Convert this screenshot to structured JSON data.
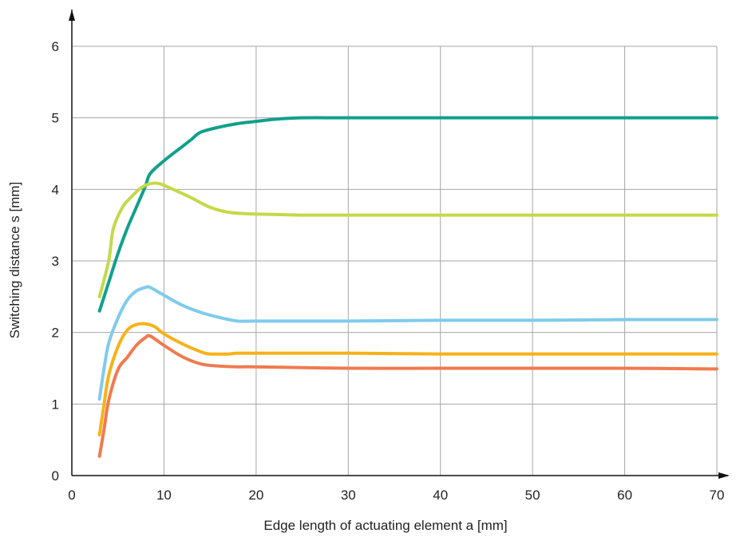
{
  "chart_data": {
    "type": "line",
    "title": "",
    "xlabel": "Edge length of actuating element a [mm]",
    "ylabel": "Switching distance s [mm]",
    "xlim": [
      0,
      70
    ],
    "ylim": [
      0,
      6
    ],
    "xticks": [
      0,
      10,
      20,
      30,
      40,
      50,
      60,
      70
    ],
    "yticks": [
      0,
      1,
      2,
      3,
      4,
      5,
      6
    ],
    "grid": true,
    "legend": "none",
    "series": [
      {
        "color": "#11a08c",
        "points": [
          [
            3,
            2.3
          ],
          [
            4,
            2.7
          ],
          [
            5,
            3.1
          ],
          [
            6,
            3.45
          ],
          [
            7,
            3.75
          ],
          [
            8,
            4.05
          ],
          [
            8.5,
            4.22
          ],
          [
            10,
            4.4
          ],
          [
            12,
            4.6
          ],
          [
            13,
            4.7
          ],
          [
            14,
            4.8
          ],
          [
            16,
            4.87
          ],
          [
            18,
            4.92
          ],
          [
            20,
            4.95
          ],
          [
            22,
            4.98
          ],
          [
            25,
            5.0
          ],
          [
            30,
            5.0
          ],
          [
            40,
            5.0
          ],
          [
            50,
            5.0
          ],
          [
            60,
            5.0
          ],
          [
            70,
            5.0
          ]
        ]
      },
      {
        "color": "#c5d94a",
        "points": [
          [
            3,
            2.5
          ],
          [
            4,
            3.0
          ],
          [
            4.5,
            3.45
          ],
          [
            5.5,
            3.75
          ],
          [
            6.5,
            3.9
          ],
          [
            7.5,
            4.02
          ],
          [
            8.5,
            4.08
          ],
          [
            9.5,
            4.08
          ],
          [
            11,
            4.0
          ],
          [
            13,
            3.88
          ],
          [
            15,
            3.75
          ],
          [
            17,
            3.68
          ],
          [
            19,
            3.66
          ],
          [
            22,
            3.65
          ],
          [
            25,
            3.64
          ],
          [
            30,
            3.64
          ],
          [
            40,
            3.64
          ],
          [
            50,
            3.64
          ],
          [
            60,
            3.64
          ],
          [
            70,
            3.64
          ]
        ]
      },
      {
        "color": "#7fcbec",
        "points": [
          [
            3,
            1.07
          ],
          [
            3.5,
            1.5
          ],
          [
            4,
            1.85
          ],
          [
            5,
            2.2
          ],
          [
            6,
            2.45
          ],
          [
            7,
            2.58
          ],
          [
            8,
            2.63
          ],
          [
            8.5,
            2.63
          ],
          [
            10,
            2.52
          ],
          [
            12,
            2.38
          ],
          [
            14,
            2.28
          ],
          [
            16,
            2.21
          ],
          [
            18,
            2.16
          ],
          [
            20,
            2.16
          ],
          [
            30,
            2.16
          ],
          [
            40,
            2.17
          ],
          [
            50,
            2.17
          ],
          [
            60,
            2.18
          ],
          [
            70,
            2.18
          ]
        ]
      },
      {
        "color": "#f7b219",
        "points": [
          [
            3,
            0.57
          ],
          [
            3.5,
            1.0
          ],
          [
            4,
            1.4
          ],
          [
            5,
            1.8
          ],
          [
            6,
            2.03
          ],
          [
            7,
            2.11
          ],
          [
            8,
            2.12
          ],
          [
            9,
            2.08
          ],
          [
            10,
            1.98
          ],
          [
            12,
            1.84
          ],
          [
            14,
            1.73
          ],
          [
            15,
            1.7
          ],
          [
            17,
            1.7
          ],
          [
            18,
            1.71
          ],
          [
            20,
            1.71
          ],
          [
            30,
            1.71
          ],
          [
            40,
            1.7
          ],
          [
            50,
            1.7
          ],
          [
            60,
            1.7
          ],
          [
            70,
            1.7
          ]
        ]
      },
      {
        "color": "#ef7b4f",
        "points": [
          [
            3,
            0.27
          ],
          [
            3.5,
            0.65
          ],
          [
            4,
            1.05
          ],
          [
            5,
            1.48
          ],
          [
            6,
            1.65
          ],
          [
            7,
            1.82
          ],
          [
            8,
            1.93
          ],
          [
            8.5,
            1.95
          ],
          [
            10,
            1.82
          ],
          [
            12,
            1.66
          ],
          [
            14,
            1.56
          ],
          [
            16,
            1.53
          ],
          [
            18,
            1.52
          ],
          [
            20,
            1.52
          ],
          [
            30,
            1.5
          ],
          [
            40,
            1.5
          ],
          [
            50,
            1.5
          ],
          [
            60,
            1.5
          ],
          [
            70,
            1.49
          ]
        ]
      }
    ]
  }
}
